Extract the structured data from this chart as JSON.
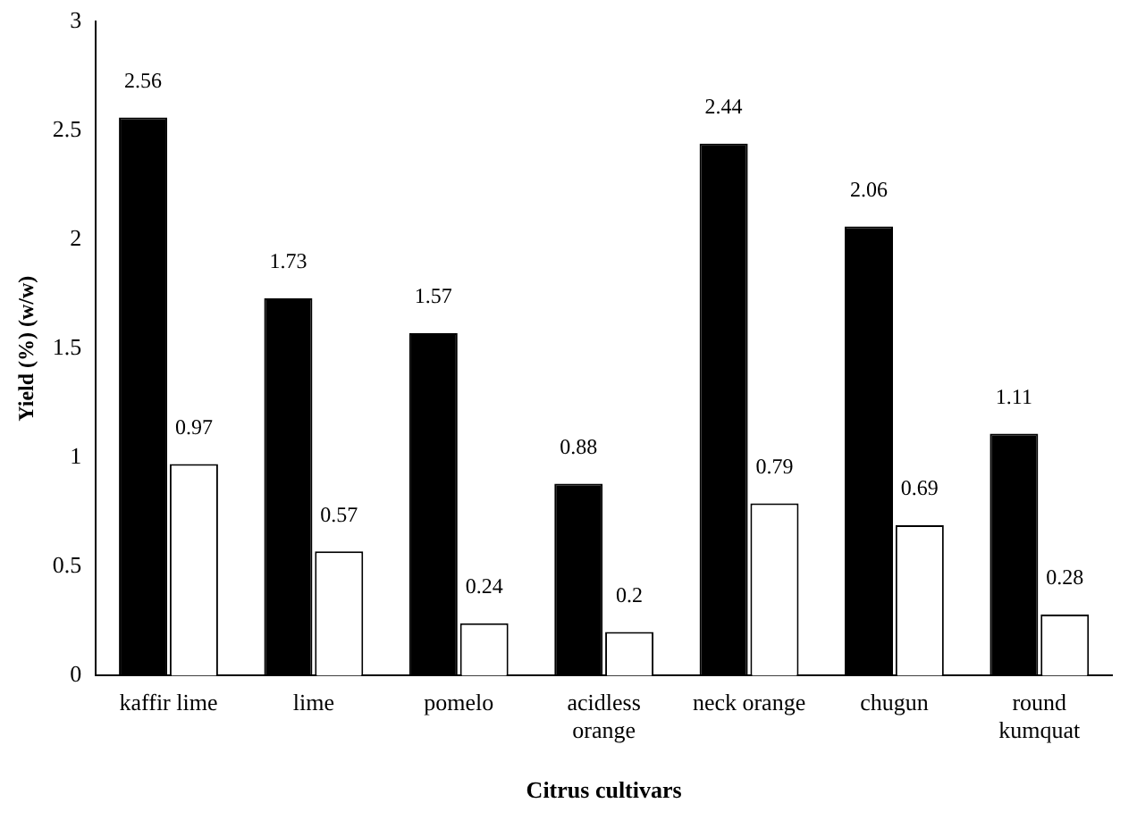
{
  "chart_data": {
    "type": "bar",
    "xlabel": "Citrus cultivars",
    "ylabel": "Yield (%) (w/w)",
    "categories": [
      "kaffir lime",
      "lime",
      "pomelo",
      "acidless orange",
      "neck orange",
      "chugun",
      "round kumquat"
    ],
    "series": [
      {
        "color": "#000000",
        "values": [
          2.56,
          1.73,
          1.57,
          0.88,
          2.44,
          2.06,
          1.11
        ]
      },
      {
        "color": "#ffffff",
        "values": [
          0.97,
          0.57,
          0.24,
          0.2,
          0.79,
          0.69,
          0.28
        ]
      }
    ],
    "ylim": [
      0,
      3
    ],
    "yticks": [
      0,
      0.5,
      1,
      1.5,
      2,
      2.5,
      3
    ],
    "grid": false,
    "legend": false,
    "data_labels": true
  }
}
